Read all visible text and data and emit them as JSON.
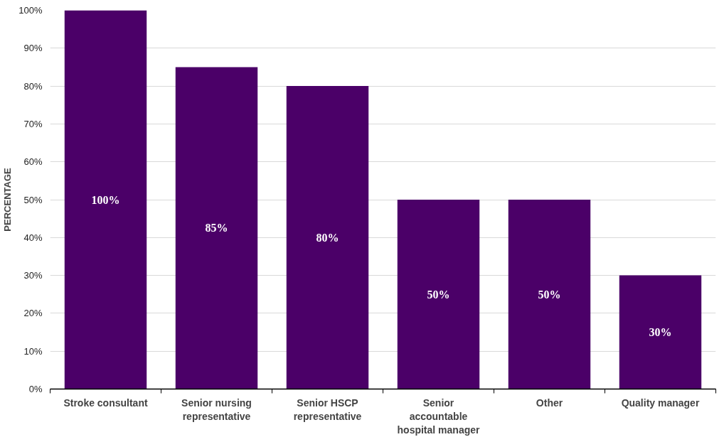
{
  "chart_data": {
    "type": "bar",
    "ylabel": "PERCENTAGE",
    "categories": [
      "Stroke consultant",
      "Senior nursing representative",
      "Senior HSCP representative",
      "Senior accountable hospital manager",
      "Other",
      "Quality manager"
    ],
    "values": [
      100,
      85,
      80,
      50,
      50,
      30
    ],
    "value_labels": [
      "100%",
      "85%",
      "80%",
      "50%",
      "50%",
      "30%"
    ],
    "color": "#4b0068",
    "ylim": [
      0,
      100
    ],
    "yticks": [
      {
        "value": 0,
        "label": "0%"
      },
      {
        "value": 10,
        "label": "10%"
      },
      {
        "value": 20,
        "label": "20%"
      },
      {
        "value": 30,
        "label": "30%"
      },
      {
        "value": 40,
        "label": "40%"
      },
      {
        "value": 50,
        "label": "50%"
      },
      {
        "value": 60,
        "label": "60%"
      },
      {
        "value": 70,
        "label": "70%"
      },
      {
        "value": 80,
        "label": "80%"
      },
      {
        "value": 90,
        "label": "90%"
      },
      {
        "value": 100,
        "label": "100%"
      }
    ],
    "grid": "y"
  }
}
